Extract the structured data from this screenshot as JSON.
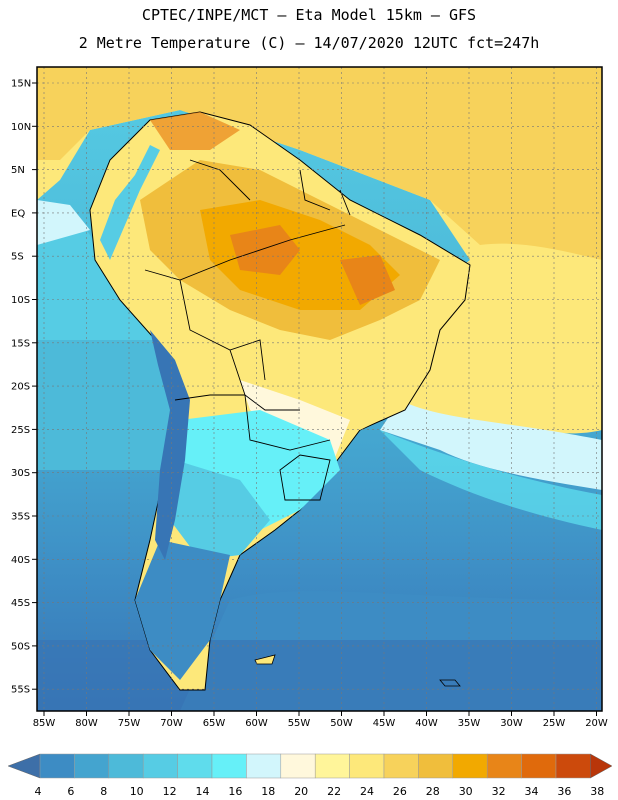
{
  "header": {
    "line1": "CPTEC/INPE/MCT –  Eta Model 15km – GFS",
    "line2": "2 Metre Temperature (C) – 14/07/2020 12UTC fct=247h"
  },
  "axes": {
    "lat_labels": [
      "15N",
      "10N",
      "5N",
      "EQ",
      "5S",
      "10S",
      "15S",
      "20S",
      "25S",
      "30S",
      "35S",
      "40S",
      "45S",
      "50S",
      "55S"
    ],
    "lon_labels": [
      "85W",
      "80W",
      "75W",
      "70W",
      "65W",
      "60W",
      "55W",
      "50W",
      "45W",
      "40W",
      "35W",
      "30W",
      "25W",
      "20W"
    ]
  },
  "colorbar": {
    "values": [
      "4",
      "6",
      "8",
      "10",
      "12",
      "14",
      "16",
      "18",
      "20",
      "22",
      "24",
      "26",
      "28",
      "30",
      "32",
      "34",
      "36",
      "38"
    ],
    "colors": [
      "#3775b5",
      "#3d8cc4",
      "#44a4cf",
      "#4dbad9",
      "#56cce4",
      "#5fdcec",
      "#66f0f8",
      "#d2f6fc",
      "#fff8dc",
      "#fff59a",
      "#fde87a",
      "#f7d25b",
      "#f0be3c",
      "#f2a900",
      "#e88518",
      "#e06a0c",
      "#cc4a0c",
      "#b8360a"
    ],
    "arrow_left": "#3d6fa8",
    "arrow_right": "#b8360a"
  }
}
